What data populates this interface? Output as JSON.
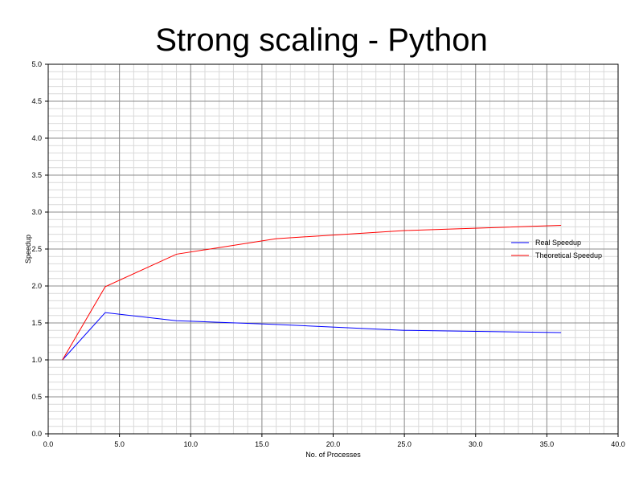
{
  "chart_data": {
    "type": "line",
    "title": "Strong scaling - Python",
    "xlabel": "No. of Processes",
    "ylabel": "Speedup",
    "xlim": [
      0,
      40
    ],
    "ylim": [
      0,
      5
    ],
    "x_ticks": [
      "0.0",
      "5.0",
      "10.0",
      "15.0",
      "20.0",
      "25.0",
      "30.0",
      "35.0",
      "40.0"
    ],
    "y_ticks": [
      "0.0",
      "0.5",
      "1.0",
      "1.5",
      "2.0",
      "2.5",
      "3.0",
      "3.5",
      "4.0",
      "4.5",
      "5.0"
    ],
    "grid": true,
    "legend_position": "right",
    "series": [
      {
        "name": "Real Speedup",
        "color": "#0000ff",
        "x": [
          1,
          4,
          9,
          16,
          25,
          36
        ],
        "y": [
          1.0,
          1.64,
          1.53,
          1.48,
          1.4,
          1.37
        ]
      },
      {
        "name": "Theoretical Speedup",
        "color": "#ff0000",
        "x": [
          1,
          4,
          9,
          16,
          25,
          36
        ],
        "y": [
          1.0,
          1.99,
          2.43,
          2.64,
          2.75,
          2.82
        ]
      }
    ]
  }
}
